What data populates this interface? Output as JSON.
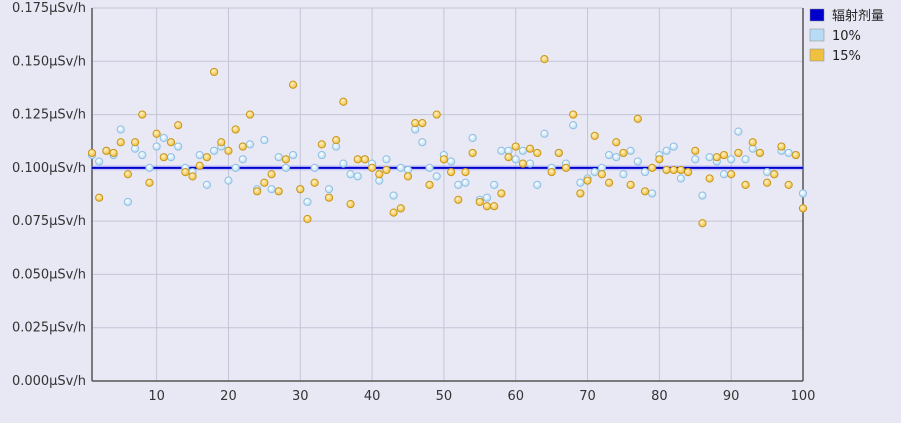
{
  "chart_data": {
    "type": "scatter",
    "title": "",
    "xlabel": "",
    "ylabel": "",
    "xlim": [
      1,
      100
    ],
    "ylim": [
      0,
      0.175
    ],
    "x_ticks": [
      10,
      20,
      30,
      40,
      50,
      60,
      70,
      80,
      90,
      100
    ],
    "y_ticks": [
      0,
      0.025,
      0.05,
      0.075,
      0.1,
      0.125,
      0.15,
      0.175
    ],
    "y_tick_labels": [
      "0.000μSv/h",
      "0.025μSv/h",
      "0.050μSv/h",
      "0.075μSv/h",
      "0.100μSv/h",
      "0.125μSv/h",
      "0.150μSv/h",
      "0.175μSv/h"
    ],
    "grid": true,
    "legend_position": "top-right",
    "series": [
      {
        "name": "辐射剂量",
        "kind": "line",
        "color": "#0000cc",
        "x": [
          1,
          100
        ],
        "y": [
          0.1,
          0.1
        ]
      },
      {
        "name": "10%",
        "kind": "scatter",
        "color": "#b8dcf5",
        "x": [
          1,
          2,
          3,
          4,
          5,
          6,
          7,
          8,
          9,
          10,
          11,
          12,
          13,
          14,
          15,
          16,
          17,
          18,
          19,
          20,
          21,
          22,
          23,
          24,
          25,
          26,
          27,
          28,
          29,
          30,
          31,
          32,
          33,
          34,
          35,
          36,
          37,
          38,
          39,
          40,
          41,
          42,
          43,
          44,
          45,
          46,
          47,
          48,
          49,
          50,
          51,
          52,
          53,
          54,
          55,
          56,
          57,
          58,
          59,
          60,
          61,
          62,
          63,
          64,
          65,
          66,
          67,
          68,
          69,
          70,
          71,
          72,
          73,
          74,
          75,
          76,
          77,
          78,
          79,
          80,
          81,
          82,
          83,
          84,
          85,
          86,
          87,
          88,
          89,
          90,
          91,
          92,
          93,
          94,
          95,
          96,
          97,
          98,
          99,
          100
        ],
        "y": [
          0.106,
          0.103,
          0.108,
          0.106,
          0.118,
          0.084,
          0.109,
          0.106,
          0.1,
          0.11,
          0.114,
          0.105,
          0.11,
          0.1,
          0.098,
          0.106,
          0.092,
          0.108,
          0.11,
          0.094,
          0.1,
          0.104,
          0.111,
          0.09,
          0.113,
          0.09,
          0.105,
          0.1,
          0.106,
          0.09,
          0.084,
          0.1,
          0.106,
          0.09,
          0.11,
          0.102,
          0.097,
          0.096,
          0.104,
          0.102,
          0.094,
          0.104,
          0.087,
          0.1,
          0.099,
          0.118,
          0.112,
          0.1,
          0.096,
          0.106,
          0.103,
          0.092,
          0.093,
          0.114,
          0.085,
          0.086,
          0.092,
          0.108,
          0.108,
          0.104,
          0.108,
          0.102,
          0.092,
          0.116,
          0.1,
          0.107,
          0.102,
          0.12,
          0.093,
          0.095,
          0.098,
          0.1,
          0.106,
          0.105,
          0.097,
          0.108,
          0.103,
          0.098,
          0.088,
          0.106,
          0.108,
          0.11,
          0.095,
          0.098,
          0.104,
          0.087,
          0.105,
          0.103,
          0.097,
          0.104,
          0.117,
          0.104,
          0.109,
          0.107,
          0.098,
          0.097,
          0.108,
          0.107,
          0.106,
          0.088
        ]
      },
      {
        "name": "15%",
        "kind": "scatter",
        "color": "#f0c040",
        "x": [
          1,
          2,
          3,
          4,
          5,
          6,
          7,
          8,
          9,
          10,
          11,
          12,
          13,
          14,
          15,
          16,
          17,
          18,
          19,
          20,
          21,
          22,
          23,
          24,
          25,
          26,
          27,
          28,
          29,
          30,
          31,
          32,
          33,
          34,
          35,
          36,
          37,
          38,
          39,
          40,
          41,
          42,
          43,
          44,
          45,
          46,
          47,
          48,
          49,
          50,
          51,
          52,
          53,
          54,
          55,
          56,
          57,
          58,
          59,
          60,
          61,
          62,
          63,
          64,
          65,
          66,
          67,
          68,
          69,
          70,
          71,
          72,
          73,
          74,
          75,
          76,
          77,
          78,
          79,
          80,
          81,
          82,
          83,
          84,
          85,
          86,
          87,
          88,
          89,
          90,
          91,
          92,
          93,
          94,
          95,
          96,
          97,
          98,
          99,
          100
        ],
        "y": [
          0.107,
          0.086,
          0.108,
          0.107,
          0.112,
          0.097,
          0.112,
          0.125,
          0.093,
          0.116,
          0.105,
          0.112,
          0.12,
          0.098,
          0.096,
          0.101,
          0.105,
          0.145,
          0.112,
          0.108,
          0.118,
          0.11,
          0.125,
          0.089,
          0.093,
          0.097,
          0.089,
          0.104,
          0.139,
          0.09,
          0.076,
          0.093,
          0.111,
          0.086,
          0.113,
          0.131,
          0.083,
          0.104,
          0.104,
          0.1,
          0.097,
          0.099,
          0.079,
          0.081,
          0.096,
          0.121,
          0.121,
          0.092,
          0.125,
          0.104,
          0.098,
          0.085,
          0.098,
          0.107,
          0.084,
          0.082,
          0.082,
          0.088,
          0.105,
          0.11,
          0.102,
          0.109,
          0.107,
          0.151,
          0.098,
          0.107,
          0.1,
          0.125,
          0.088,
          0.094,
          0.115,
          0.097,
          0.093,
          0.112,
          0.107,
          0.092,
          0.123,
          0.089,
          0.1,
          0.104,
          0.099,
          0.099,
          0.099,
          0.098,
          0.108,
          0.074,
          0.095,
          0.105,
          0.106,
          0.097,
          0.107,
          0.092,
          0.112,
          0.107,
          0.093,
          0.097,
          0.11,
          0.092,
          0.106,
          0.081
        ]
      }
    ]
  }
}
